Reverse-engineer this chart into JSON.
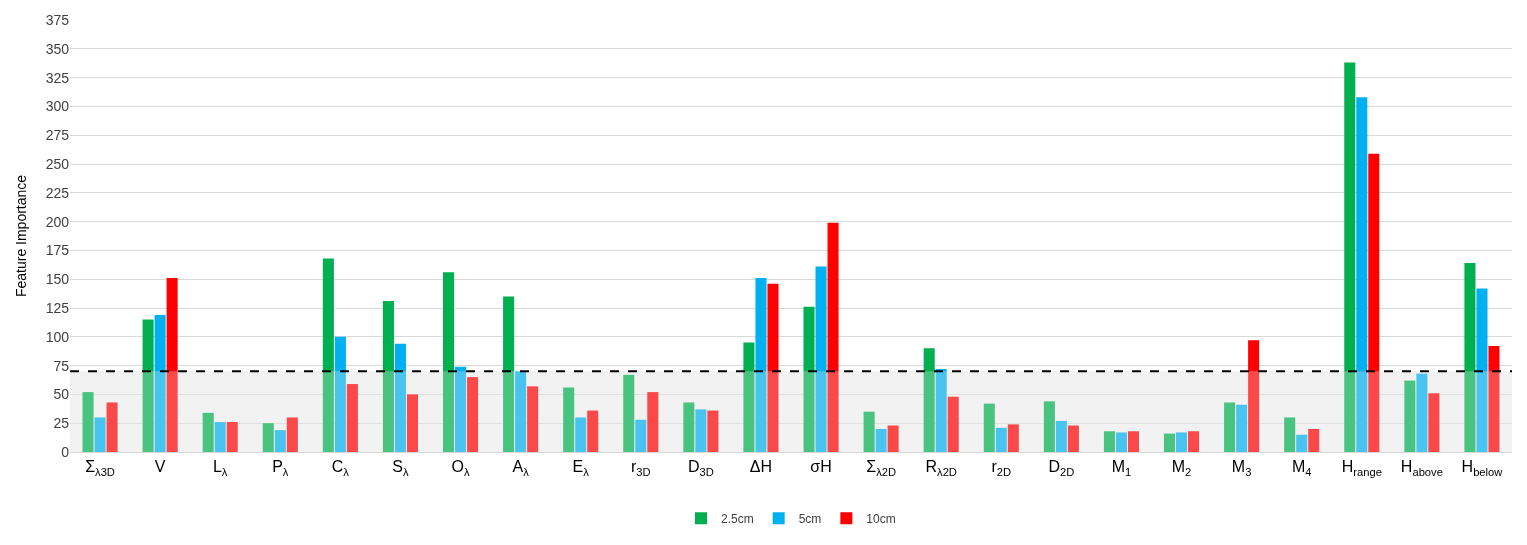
{
  "chart_data": {
    "type": "bar",
    "ylabel": "Feature Importance",
    "categories": [
      "Σ$_{λ3D}$",
      "V",
      "L$_{λ}$",
      "P$_{λ}$",
      "C$_{λ}$",
      "S$_{λ}$",
      "O$_{λ}$",
      "A$_{λ}$",
      "E$_{λ}$",
      "r$_{3D}$",
      "D$_{3D}$",
      "ΔH",
      "σH",
      "Σ$_{λ2D}$",
      "R$_{λ2D}$",
      "r$_{2D}$",
      "D$_{2D}$",
      "M$_{1}$",
      "M$_{2}$",
      "M$_{3}$",
      "M$_{4}$",
      "H$_{range}$",
      "H$_{above}$",
      "H$_{below}$"
    ],
    "series": [
      {
        "name": "2.5cm",
        "color": "#00b050",
        "values": [
          52,
          115,
          34,
          25,
          168,
          131,
          156,
          135,
          56,
          67,
          43,
          95,
          126,
          35,
          90,
          42,
          44,
          18,
          16,
          43,
          30,
          338,
          62,
          164
        ]
      },
      {
        "name": "5cm",
        "color": "#00b0f0",
        "values": [
          30,
          119,
          26,
          19,
          100,
          94,
          74,
          70,
          30,
          28,
          37,
          151,
          161,
          20,
          72,
          21,
          27,
          17,
          17,
          41,
          15,
          308,
          68,
          142
        ]
      },
      {
        "name": "10cm",
        "color": "#ff0000",
        "values": [
          43,
          151,
          26,
          30,
          59,
          50,
          65,
          57,
          36,
          52,
          36,
          146,
          199,
          23,
          48,
          24,
          23,
          18,
          18,
          97,
          20,
          259,
          51,
          92
        ]
      }
    ],
    "ylim": [
      0,
      375
    ],
    "yticks": [
      0,
      25,
      50,
      75,
      100,
      125,
      150,
      175,
      200,
      225,
      250,
      275,
      300,
      325,
      350,
      375
    ],
    "ref_lines": [
      {
        "axis": "y",
        "value": 70,
        "color": "#000000",
        "line_style": "dashed"
      }
    ],
    "bands": [
      {
        "axis": "y",
        "from": 0,
        "to": 70,
        "color": "#f2f2f2"
      }
    ],
    "grid": "y",
    "legend": "bottom"
  }
}
